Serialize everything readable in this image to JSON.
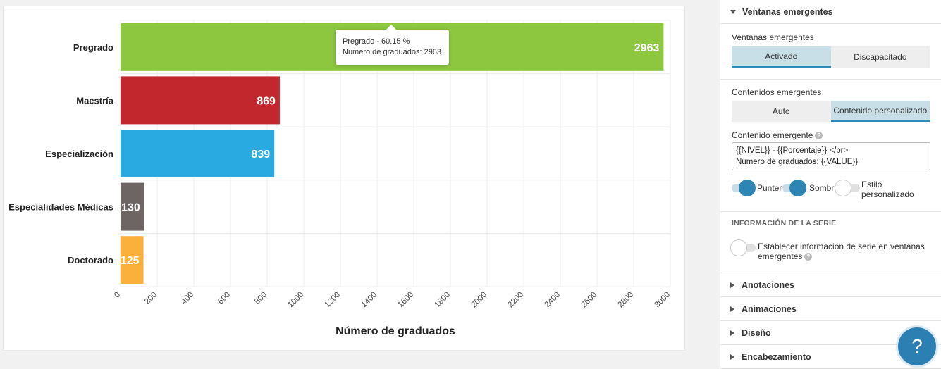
{
  "chart_data": {
    "type": "bar",
    "orientation": "horizontal",
    "categories": [
      "Pregrado",
      "Maestría",
      "Especialización",
      "Especialidades Médicas",
      "Doctorado"
    ],
    "values": [
      2963,
      869,
      839,
      130,
      125
    ],
    "colors": [
      "#8dc63f",
      "#c1272d",
      "#29abe2",
      "#6d6464",
      "#fbb03b"
    ],
    "xlabel": "Número de graduados",
    "xlim": [
      0,
      3000
    ],
    "x_ticks": [
      0,
      200,
      400,
      600,
      800,
      1000,
      1200,
      1400,
      1600,
      1800,
      2000,
      2200,
      2400,
      2600,
      2800,
      3000
    ],
    "grid": true,
    "data_labels": true
  },
  "tooltip": {
    "line1": "Pregrado - 60.15 %",
    "line2": "Número de graduados: 2963"
  },
  "panel": {
    "section_title": "Ventanas emergentes",
    "popups_label": "Ventanas emergentes",
    "popups_on": "Activado",
    "popups_off": "Discapacitado",
    "content_label": "Contenidos emergentes",
    "content_auto": "Auto",
    "content_custom": "Contenido personalizado",
    "custom_label": "Contenido emergente",
    "custom_text": "{{NIVEL}} - {{Porcentaje}} </br>\nNúmero de graduados: {{VALUE}}",
    "toggle_pointer": "Punter",
    "toggle_shadow": "Sombr",
    "toggle_style": "Estilo personalizado",
    "series_info_head": "INFORMACIÓN DE LA SERIE",
    "series_info_toggle": "Establecer información de serie en ventanas emergentes",
    "collapsed": [
      "Anotaciones",
      "Animaciones",
      "Diseño",
      "Encabezamiento"
    ],
    "help_glyph": "?",
    "help_icon_glyph": "?"
  }
}
